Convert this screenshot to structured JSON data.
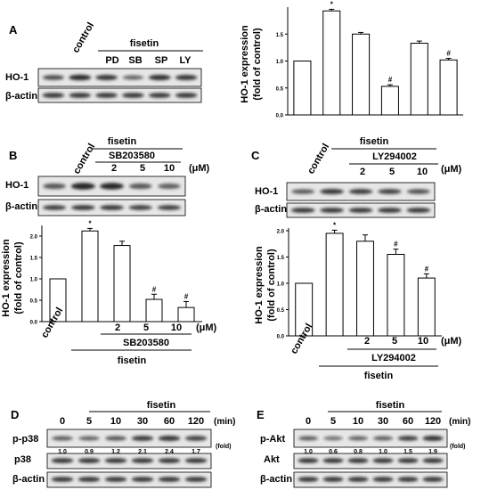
{
  "panels": {
    "A": {
      "letter": "A",
      "blot": {
        "control": "control",
        "treatment": "fisetin",
        "lanes": [
          "PD",
          "SB",
          "SP",
          "LY"
        ],
        "rows": [
          "HO-1",
          "β-actin"
        ]
      },
      "chart_data": {
        "type": "bar",
        "ylabel": "HO-1 expression (fold of control)",
        "ylim": [
          0,
          2.0
        ],
        "yticks": [
          "0.0",
          "0.5",
          "1.0",
          "1.5"
        ],
        "values": [
          1.0,
          1.93,
          1.5,
          0.53,
          1.33,
          1.02
        ],
        "errors": [
          0,
          0.03,
          0.03,
          0.03,
          0.04,
          0.03
        ],
        "annotations": [
          "",
          "*",
          "",
          "#",
          "",
          "#"
        ]
      }
    },
    "B": {
      "letter": "B",
      "blot": {
        "control": "control",
        "treatment": "fisetin",
        "inhibitor": "SB203580",
        "doses": [
          "2",
          "5",
          "10"
        ],
        "unit": "(μM)",
        "rows": [
          "HO-1",
          "β-actin"
        ]
      },
      "chart_data": {
        "type": "bar",
        "ylabel": "HO-1 expression (fold of control)",
        "ylim": [
          0,
          2.25
        ],
        "yticks": [
          "0.0",
          "0.5",
          "1.0",
          "1.5",
          "2.0"
        ],
        "values": [
          1.0,
          2.12,
          1.78,
          0.52,
          0.33
        ],
        "errors": [
          0,
          0.06,
          0.1,
          0.12,
          0.14
        ],
        "annotations": [
          "",
          "*",
          "",
          "#",
          "#"
        ],
        "xlabels": [
          "control",
          "",
          "2",
          "5",
          "10"
        ],
        "unit": "(μM)",
        "inhibitor": "SB203580",
        "treatment": "fisetin"
      }
    },
    "C": {
      "letter": "C",
      "blot": {
        "control": "control",
        "treatment": "fisetin",
        "inhibitor": "LY294002",
        "doses": [
          "2",
          "5",
          "10"
        ],
        "unit": "(μM)",
        "rows": [
          "HO-1",
          "β-actin"
        ]
      },
      "chart_data": {
        "type": "bar",
        "ylabel": "HO-1 expression (fold of control)",
        "ylim": [
          0,
          2.05
        ],
        "yticks": [
          "0.0",
          "0.5",
          "1.0",
          "1.5",
          "2.0"
        ],
        "values": [
          1.0,
          1.95,
          1.8,
          1.55,
          1.1
        ],
        "errors": [
          0,
          0.06,
          0.12,
          0.1,
          0.08
        ],
        "annotations": [
          "",
          "*",
          "",
          "#",
          "#"
        ],
        "xlabels": [
          "control",
          "",
          "2",
          "5",
          "10"
        ],
        "unit": "(μM)",
        "inhibitor": "LY294002",
        "treatment": "fisetin"
      }
    },
    "D": {
      "letter": "D",
      "treatment": "fisetin",
      "times": [
        "0",
        "5",
        "10",
        "30",
        "60",
        "120"
      ],
      "time_unit": "(min)",
      "rows": [
        "p-p38",
        "p38",
        "β-actin"
      ],
      "folds": [
        "1.0",
        "0.9",
        "1.2",
        "2.1",
        "2.4",
        "1.7"
      ],
      "fold_unit": "(fold)"
    },
    "E": {
      "letter": "E",
      "treatment": "fisetin",
      "times": [
        "0",
        "5",
        "10",
        "30",
        "60",
        "120"
      ],
      "time_unit": "(min)",
      "rows": [
        "p-Akt",
        "Akt",
        "β-actin"
      ],
      "folds": [
        "1.0",
        "0.6",
        "0.8",
        "1.0",
        "1.5",
        "1.9"
      ],
      "fold_unit": "(fold)"
    }
  }
}
